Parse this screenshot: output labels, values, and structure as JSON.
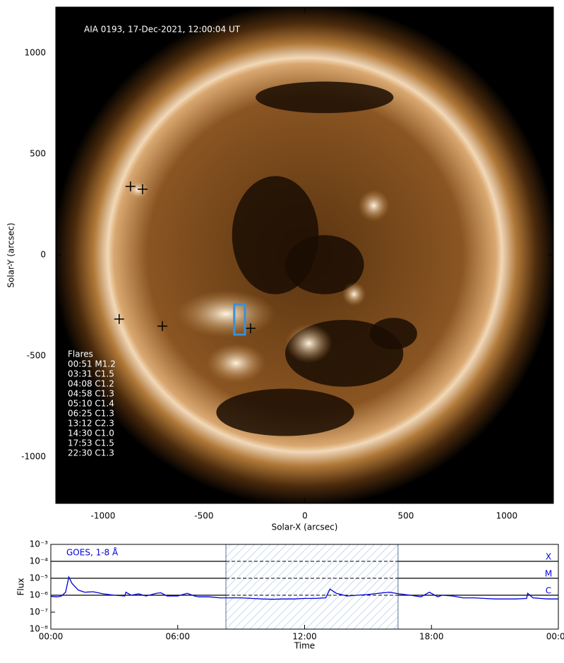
{
  "chart_data": [
    {
      "type": "image",
      "annotation": "AIA 0193, 17-Dec-2021, 12:00:04 UT",
      "xlabel": "Solar-X (arcsec)",
      "ylabel": "Solar-Y (arcsec)",
      "xlim": [
        -1234,
        1231
      ],
      "ylim": [
        -1231,
        1227
      ],
      "xticks": [
        -1000,
        -500,
        0,
        500,
        1000
      ],
      "yticks": [
        -1000,
        -500,
        0,
        500,
        1000
      ],
      "solar_radius": 975,
      "markers": {
        "x": [
          -864,
          -804,
          -920,
          -706,
          -269
        ],
        "y": [
          339,
          325,
          -318,
          -353,
          -364
        ],
        "color": "#000000"
      },
      "box": {
        "x": [
          -350,
          -297
        ],
        "y": [
          -395,
          -245
        ],
        "color": "#3a8fd8"
      },
      "flare_list_title": "Flares",
      "flare_list": [
        "00:51 M1.2",
        "03:31 C1.5",
        "04:08 C1.2",
        "04:58 C1.3",
        "05:10 C1.4",
        "06:25 C1.3",
        "13:12 C2.3",
        "14:30 C1.0",
        "17:53 C1.5",
        "22:30 C1.3"
      ]
    },
    {
      "type": "line",
      "log_y": true,
      "xlabel": "Time",
      "ylabel": "Flux",
      "xlim": [
        0,
        24
      ],
      "ylim": [
        1e-08,
        0.001
      ],
      "xticks": [
        {
          "value": 0,
          "label": "00:00"
        },
        {
          "value": 6,
          "label": "06:00"
        },
        {
          "value": 12,
          "label": "12:00"
        },
        {
          "value": 18,
          "label": "18:00"
        },
        {
          "value": 24,
          "label": "00:00"
        }
      ],
      "yticks": [
        {
          "value": 1e-08,
          "label": "10⁻⁸"
        },
        {
          "value": 1e-07,
          "label": "10⁻⁷"
        },
        {
          "value": 1e-06,
          "label": "10⁻⁶"
        },
        {
          "value": 1e-05,
          "label": "10⁻⁵"
        },
        {
          "value": 0.0001,
          "label": "10⁻⁴"
        },
        {
          "value": 0.001,
          "label": "10⁻³"
        }
      ],
      "class_lines": [
        {
          "label": "X",
          "value": 0.0001
        },
        {
          "label": "M",
          "value": 1e-05
        },
        {
          "label": "C",
          "value": 1e-06
        }
      ],
      "shaded": [
        8.28,
        16.42
      ],
      "x": [
        0,
        0.3,
        0.5,
        0.7,
        0.85,
        1.0,
        1.3,
        1.6,
        2,
        2.5,
        3,
        3.5,
        3.55,
        3.8,
        4.15,
        4.5,
        5.0,
        5.2,
        5.5,
        6,
        6.45,
        6.8,
        7,
        7.5,
        8,
        8.5,
        9,
        9.5,
        10,
        10.5,
        11,
        11.5,
        12,
        12.5,
        13,
        13.2,
        13.5,
        14,
        14.5,
        15,
        15.5,
        16,
        16.5,
        17,
        17.5,
        17.9,
        18.3,
        18.5,
        19,
        19.5,
        20,
        20.5,
        21,
        21.5,
        22,
        22.5,
        22.55,
        22.8,
        23.5,
        24
      ],
      "series": [
        {
          "name": "GOES, 1-8 Å",
          "color": "#0000dd",
          "values": [
            8.5e-07,
            8e-07,
            9e-07,
            1.5e-06,
            1.2e-05,
            5e-06,
            2e-06,
            1.5e-06,
            1.6e-06,
            1.2e-06,
            1e-06,
            9e-07,
            1.5e-06,
            1e-06,
            1.2e-06,
            9e-07,
            1.3e-06,
            1.4e-06,
            9e-07,
            9e-07,
            1.3e-06,
            9e-07,
            8e-07,
            8e-07,
            7e-07,
            7e-07,
            7e-07,
            6.5e-07,
            6e-07,
            5.8e-07,
            6e-07,
            6e-07,
            6.5e-07,
            6.5e-07,
            7e-07,
            2.3e-06,
            1.3e-06,
            9e-07,
            1e-06,
            1.1e-06,
            1.3e-06,
            1.5e-06,
            1.2e-06,
            1e-06,
            8e-07,
            1.5e-06,
            8e-07,
            1e-06,
            9e-07,
            7e-07,
            7e-07,
            6.5e-07,
            6e-07,
            6e-07,
            6e-07,
            6.5e-07,
            1.3e-06,
            7e-07,
            6e-07,
            6e-07
          ]
        }
      ]
    }
  ]
}
